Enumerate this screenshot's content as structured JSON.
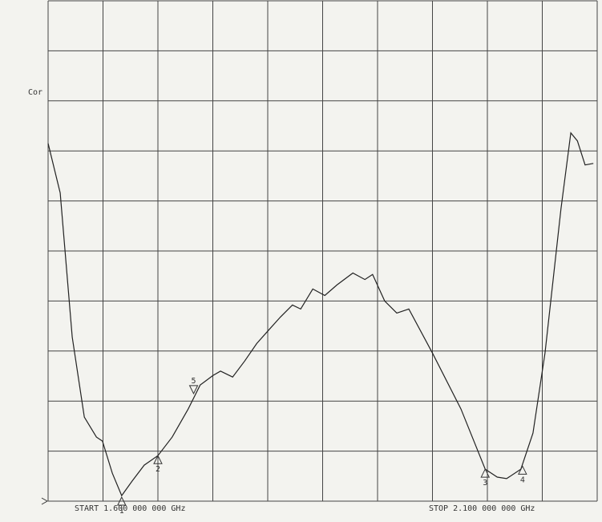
{
  "chart_data": {
    "type": "line",
    "annotation": "Cor",
    "start_label": "START 1.600 000 000 GHz",
    "stop_label": "STOP 2.100 000 000 GHz",
    "xlim": [
      0,
      10
    ],
    "ylim": [
      0,
      10
    ],
    "xticks": [
      0,
      1,
      2,
      3,
      4,
      5,
      6,
      7,
      8,
      9,
      10
    ],
    "yticks": [
      0,
      1,
      2,
      3,
      4,
      5,
      6,
      7,
      8,
      9,
      10
    ],
    "grid": true,
    "color": "#222222",
    "x": [
      0,
      0.22,
      0.44,
      0.66,
      0.88,
      0.99,
      1.17,
      1.34,
      1.53,
      1.75,
      2.0,
      2.26,
      2.55,
      2.77,
      3.0,
      3.14,
      3.36,
      3.58,
      3.8,
      4.01,
      4.23,
      4.45,
      4.6,
      4.82,
      5.04,
      5.26,
      5.55,
      5.77,
      5.91,
      6.13,
      6.35,
      6.57,
      7.0,
      7.52,
      7.96,
      8.18,
      8.35,
      8.61,
      8.83,
      9.05,
      9.34,
      9.52,
      9.64,
      9.78,
      9.93
    ],
    "values": [
      7.15,
      6.16,
      3.28,
      1.68,
      1.28,
      1.2,
      0.56,
      0.11,
      0.4,
      0.72,
      0.91,
      1.28,
      1.84,
      2.32,
      2.51,
      2.6,
      2.48,
      2.8,
      3.15,
      3.41,
      3.68,
      3.92,
      3.84,
      4.24,
      4.11,
      4.32,
      4.56,
      4.43,
      4.53,
      4.0,
      3.76,
      3.84,
      2.96,
      1.84,
      0.64,
      0.48,
      0.45,
      0.64,
      1.36,
      2.96,
      5.84,
      7.36,
      7.2,
      6.72,
      6.75
    ],
    "markers": [
      {
        "label": "1",
        "x": 1.34,
        "y": 0.08,
        "direction": "up"
      },
      {
        "label": "2",
        "x": 2.0,
        "y": 0.91,
        "direction": "up"
      },
      {
        "label": "3",
        "x": 7.96,
        "y": 0.64,
        "direction": "up"
      },
      {
        "label": "4",
        "x": 8.64,
        "y": 0.7,
        "direction": "up"
      },
      {
        "label": "5",
        "x": 2.65,
        "y": 2.15,
        "direction": "down"
      }
    ]
  }
}
